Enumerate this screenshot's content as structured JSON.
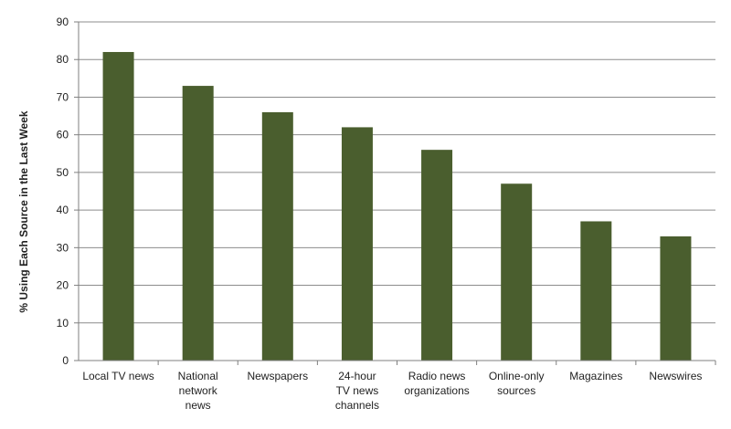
{
  "chart_data": {
    "type": "bar",
    "title": "",
    "xlabel": "",
    "ylabel": "% Using Each Source in the Last Week",
    "ylim": [
      0,
      90
    ],
    "yticks": [
      0,
      10,
      20,
      30,
      40,
      50,
      60,
      70,
      80,
      90
    ],
    "grid": true,
    "categories": [
      [
        "Local TV news"
      ],
      [
        "National",
        "network",
        "news"
      ],
      [
        "Newspapers"
      ],
      [
        "24-hour",
        "TV news",
        "channels"
      ],
      [
        "Radio news",
        "organizations"
      ],
      [
        "Online-only",
        "sources"
      ],
      [
        "Magazines"
      ],
      [
        "Newswires"
      ]
    ],
    "values": [
      82,
      73,
      66,
      62,
      56,
      47,
      37,
      33
    ],
    "bar_color": "#4a5e2e",
    "grid_color": "#8c8c8c",
    "axis_color": "#7f7f7f"
  }
}
